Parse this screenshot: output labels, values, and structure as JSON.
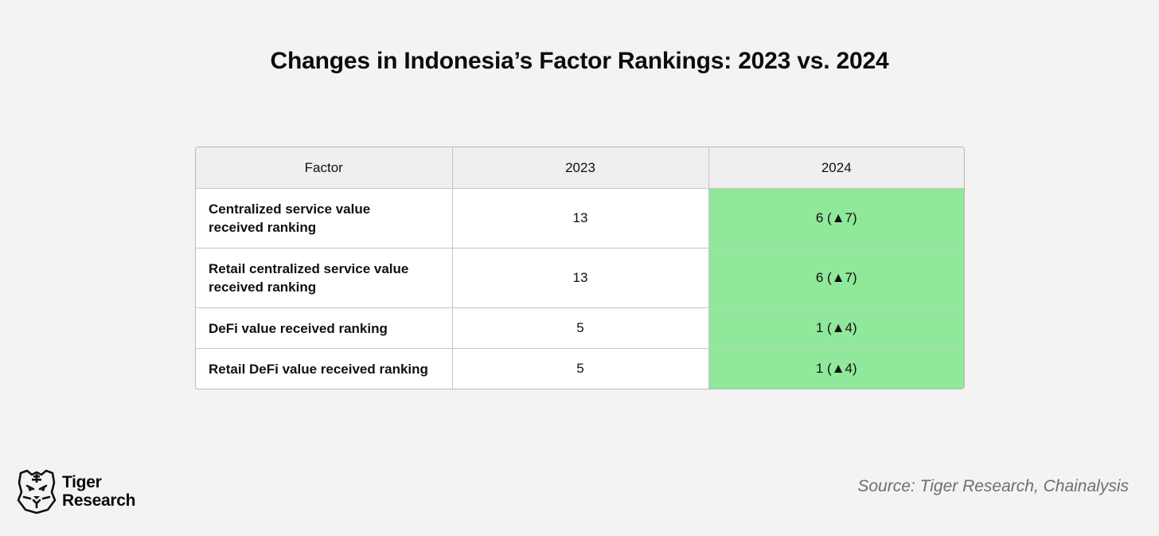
{
  "title": "Changes in Indonesia’s Factor Rankings: 2023 vs. 2024",
  "table": {
    "headers": [
      "Factor",
      "2023",
      "2024"
    ],
    "rows": [
      {
        "factor_line1": "Centralized service value",
        "factor_line2": "received ranking",
        "y2023": "13",
        "y2024": "6 (▲7)"
      },
      {
        "factor_line1": "Retail centralized service value",
        "factor_line2": "received ranking",
        "y2023": "13",
        "y2024": "6 (▲7)"
      },
      {
        "factor_line1": "DeFi value received ranking",
        "factor_line2": "",
        "y2023": "5",
        "y2024": "1 (▲4)"
      },
      {
        "factor_line1": "Retail DeFi value received ranking",
        "factor_line2": "",
        "y2023": "5",
        "y2024": "1 (▲4)"
      }
    ],
    "highlight_color": "#90e89a"
  },
  "logo": {
    "line1": "Tiger",
    "line2": "Research",
    "icon": "tiger-head-icon"
  },
  "source": "Source: Tiger Research, Chainalysis"
}
